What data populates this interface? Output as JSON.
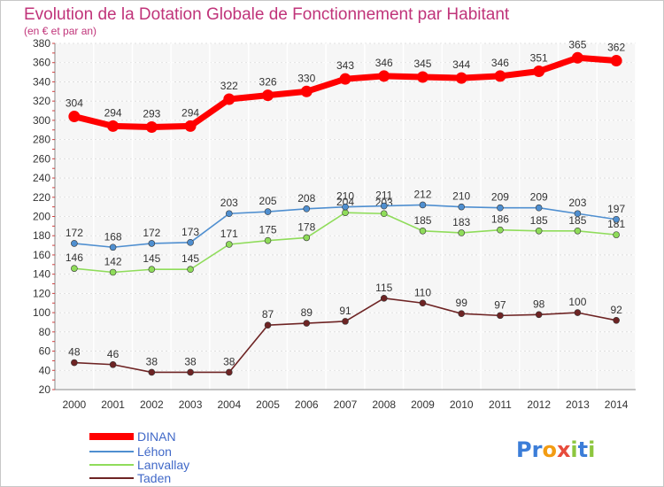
{
  "chart_data": {
    "type": "line",
    "title": "Evolution de la Dotation Globale de Fonctionnement par Habitant",
    "subtitle": "(en € et par an)",
    "x": [
      2000,
      2001,
      2002,
      2003,
      2004,
      2005,
      2006,
      2007,
      2008,
      2009,
      2010,
      2011,
      2012,
      2013,
      2014
    ],
    "ylim": [
      20,
      380
    ],
    "yticks": [
      20,
      40,
      60,
      80,
      100,
      120,
      140,
      160,
      180,
      200,
      220,
      240,
      260,
      280,
      300,
      320,
      340,
      360,
      380
    ],
    "grid": true,
    "legend_position": "bottom-left",
    "series": [
      {
        "name": "DINAN",
        "color": "#ff0000",
        "values": [
          304,
          294,
          293,
          294,
          322,
          326,
          330,
          343,
          346,
          345,
          344,
          346,
          351,
          365,
          362
        ]
      },
      {
        "name": "Léhon",
        "color": "#4f8fd0",
        "values": [
          172,
          168,
          172,
          173,
          203,
          205,
          208,
          210,
          211,
          212,
          210,
          209,
          209,
          203,
          197
        ]
      },
      {
        "name": "Lanvallay",
        "color": "#8fdc5a",
        "values": [
          146,
          142,
          145,
          145,
          171,
          175,
          178,
          204,
          203,
          185,
          183,
          186,
          185,
          185,
          181
        ]
      },
      {
        "name": "Taden",
        "color": "#6e2424",
        "values": [
          48,
          46,
          38,
          38,
          38,
          87,
          89,
          91,
          115,
          110,
          99,
          97,
          98,
          100,
          92
        ]
      }
    ]
  },
  "logo": {
    "letters": [
      "P",
      "r",
      "o",
      "x",
      "i",
      "t",
      "i"
    ],
    "colors": [
      "#3b7dd8",
      "#3b7dd8",
      "#f39c12",
      "#e74c3c",
      "#8dc63f",
      "#3b7dd8",
      "#8dc63f"
    ]
  }
}
